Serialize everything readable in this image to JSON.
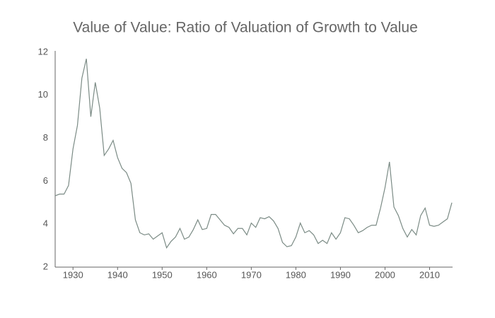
{
  "chart_data": {
    "type": "line",
    "title": "Value of Value: Ratio of Valuation of Growth to Value",
    "x": [
      1926,
      1927,
      1928,
      1929,
      1930,
      1931,
      1932,
      1933,
      1934,
      1935,
      1936,
      1937,
      1938,
      1939,
      1940,
      1941,
      1942,
      1943,
      1944,
      1945,
      1946,
      1947,
      1948,
      1949,
      1950,
      1951,
      1952,
      1953,
      1954,
      1955,
      1956,
      1957,
      1958,
      1959,
      1960,
      1961,
      1962,
      1963,
      1964,
      1965,
      1966,
      1967,
      1968,
      1969,
      1970,
      1971,
      1972,
      1973,
      1974,
      1975,
      1976,
      1977,
      1978,
      1979,
      1980,
      1981,
      1982,
      1983,
      1984,
      1985,
      1986,
      1987,
      1988,
      1989,
      1990,
      1991,
      1992,
      1993,
      1994,
      1995,
      1996,
      1997,
      1998,
      1999,
      2000,
      2001,
      2002,
      2003,
      2004,
      2005,
      2006,
      2007,
      2008,
      2009,
      2010,
      2011,
      2012,
      2013,
      2014,
      2015
    ],
    "series": [
      {
        "color": "#7b8b85",
        "values": [
          5.32,
          5.4,
          5.4,
          5.8,
          7.5,
          8.6,
          10.8,
          11.7,
          9.0,
          10.6,
          9.4,
          7.2,
          7.5,
          7.9,
          7.1,
          6.6,
          6.4,
          5.9,
          4.2,
          3.6,
          3.5,
          3.55,
          3.3,
          3.45,
          3.6,
          2.9,
          3.2,
          3.4,
          3.8,
          3.3,
          3.4,
          3.75,
          4.2,
          3.75,
          3.8,
          4.45,
          4.45,
          4.2,
          3.95,
          3.85,
          3.55,
          3.8,
          3.8,
          3.5,
          4.05,
          3.85,
          4.3,
          4.25,
          4.35,
          4.15,
          3.8,
          3.15,
          2.95,
          3.0,
          3.4,
          4.05,
          3.6,
          3.7,
          3.5,
          3.1,
          3.25,
          3.1,
          3.6,
          3.3,
          3.6,
          4.3,
          4.25,
          3.95,
          3.6,
          3.7,
          3.85,
          3.95,
          3.95,
          4.75,
          5.7,
          6.9,
          4.8,
          4.4,
          3.8,
          3.4,
          3.75,
          3.5,
          4.4,
          4.75,
          3.95,
          3.9,
          3.95,
          4.1,
          4.25,
          5.0
        ]
      }
    ],
    "xlim": [
      1926,
      2015
    ],
    "xticks": [
      1930,
      1940,
      1950,
      1960,
      1970,
      1980,
      1990,
      2000,
      2010
    ],
    "ylim": [
      2,
      12
    ],
    "yticks": [
      2,
      4,
      6,
      8,
      10,
      12
    ],
    "grid": false
  }
}
